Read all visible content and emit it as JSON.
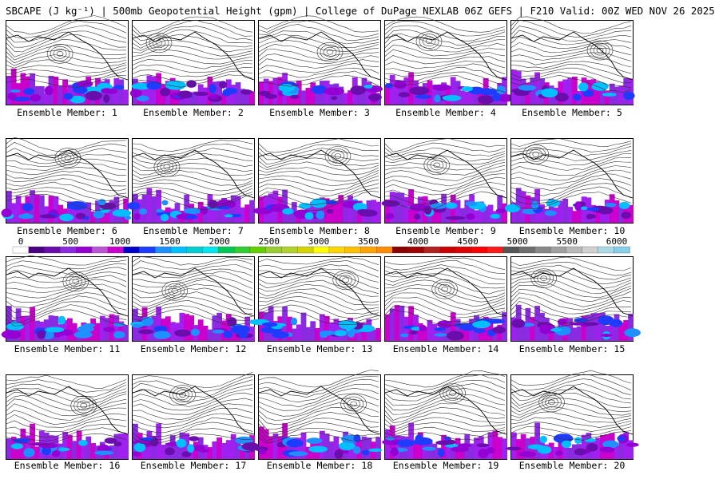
{
  "title": "SBCAPE (J kg⁻¹) | 500mb Geopotential Height (gpm) | College of DuPage NEXLAB 06Z GEFS | F210 Valid: 00Z WED NOV 26 2025",
  "colorbar": {
    "tick_labels": [
      "0",
      "500",
      "1000",
      "1500",
      "2000",
      "2500",
      "3000",
      "3500",
      "4000",
      "4500",
      "5000",
      "5500",
      "6000"
    ],
    "colors": [
      "#ffffff",
      "#4b0082",
      "#6a0dad",
      "#8a2be2",
      "#9400d3",
      "#ba55d3",
      "#cc00cc",
      "#0000cd",
      "#1e3cff",
      "#1e90ff",
      "#00bfff",
      "#00ced1",
      "#00e5ee",
      "#00c957",
      "#32cd32",
      "#66cd00",
      "#9acd32",
      "#b3d12c",
      "#d4d400",
      "#ffff00",
      "#ffd700",
      "#ffc000",
      "#ffa500",
      "#ff8c00",
      "#8b0000",
      "#a00000",
      "#b22222",
      "#cc0000",
      "#e00000",
      "#ff0000",
      "#ff1a1a",
      "#555555",
      "#6e6e6e",
      "#888888",
      "#a0a0a0",
      "#b8b8b8",
      "#d0d0d0",
      "#add8e6",
      "#87ceeb"
    ]
  },
  "panels": [
    {
      "label": "Ensemble Member: 1"
    },
    {
      "label": "Ensemble Member: 2"
    },
    {
      "label": "Ensemble Member: 3"
    },
    {
      "label": "Ensemble Member: 4"
    },
    {
      "label": "Ensemble Member: 5"
    },
    {
      "label": "Ensemble Member: 6"
    },
    {
      "label": "Ensemble Member: 7"
    },
    {
      "label": "Ensemble Member: 8"
    },
    {
      "label": "Ensemble Member: 9"
    },
    {
      "label": "Ensemble Member: 10"
    },
    {
      "label": "Ensemble Member: 11"
    },
    {
      "label": "Ensemble Member: 12"
    },
    {
      "label": "Ensemble Member: 13"
    },
    {
      "label": "Ensemble Member: 14"
    },
    {
      "label": "Ensemble Member: 15"
    },
    {
      "label": "Ensemble Member: 16"
    },
    {
      "label": "Ensemble Member: 17"
    },
    {
      "label": "Ensemble Member: 18"
    },
    {
      "label": "Ensemble Member: 19"
    },
    {
      "label": "Ensemble Member: 20"
    }
  ]
}
